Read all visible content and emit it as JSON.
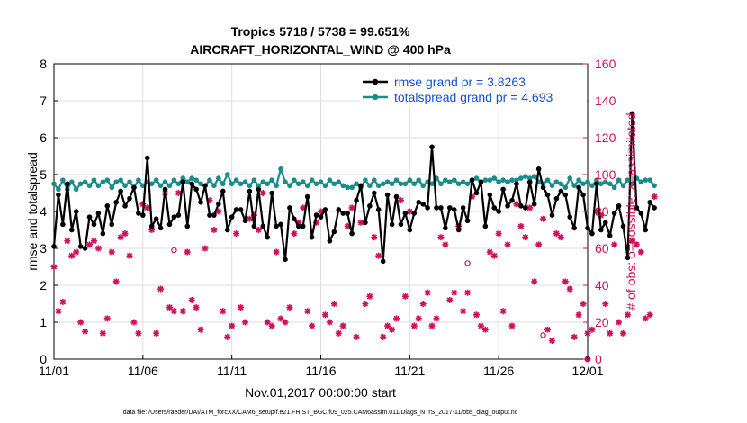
{
  "colors": {
    "rmse": "#000000",
    "spread": "#1a8c8c",
    "obs": "#d0105a",
    "legend_text": "#1550d8"
  },
  "chart_data": {
    "type": "line",
    "title": "Tropics 5718 / 5738 = 99.651%",
    "subtitle": "AIRCRAFT_HORIZONTAL_WIND @ 400 hPa",
    "xlabel": "Nov.01,2017 00:00:00 start",
    "ylabel": "rmse and totalspread",
    "ylabel_right": "# of obs: o=possible; ×=assimilated",
    "footnote": "data file: /Users/raeder/DAI/ATM_forcXX/CAM6_setup/f.e21.FHIST_BGC.f09_025.CAM6assim.011/Diags_NTrS_2017-11/obs_diag_output.nc",
    "xlim": [
      0,
      30
    ],
    "ylim": [
      0,
      8
    ],
    "ylim_right": [
      0,
      160
    ],
    "x_ticks": [
      0,
      5,
      10,
      15,
      20,
      25,
      30
    ],
    "x_tick_labels": [
      "11/01",
      "11/06",
      "11/11",
      "11/16",
      "11/21",
      "11/26",
      "12/01"
    ],
    "y_ticks": [
      "0",
      "1",
      "2",
      "3",
      "4",
      "5",
      "6",
      "7",
      "8"
    ],
    "y_ticks_right": [
      "0",
      "20",
      "40",
      "60",
      "80",
      "100",
      "120",
      "140",
      "160"
    ],
    "grid": true,
    "legend": "top-right",
    "series": [
      {
        "name": "rmse grand pr = 3.8263",
        "axis": "left",
        "x_start": 0,
        "x_step": 0.25,
        "values": [
          3.05,
          4.45,
          3.65,
          4.75,
          3.5,
          4.0,
          3.05,
          3.0,
          3.85,
          3.65,
          3.95,
          3.4,
          4.15,
          3.65,
          4.25,
          4.55,
          4.15,
          4.35,
          4.65,
          3.95,
          3.9,
          5.45,
          3.6,
          3.8,
          3.55,
          4.6,
          3.65,
          3.85,
          3.9,
          4.8,
          3.6,
          4.75,
          4.6,
          4.25,
          4.7,
          3.9,
          3.9,
          4.2,
          4.55,
          3.5,
          3.85,
          4.05,
          4.05,
          3.75,
          4.55,
          3.6,
          4.6,
          3.6,
          3.3,
          4.5,
          3.6,
          3.65,
          2.7,
          4.1,
          3.8,
          3.6,
          3.6,
          4.4,
          3.3,
          3.9,
          3.85,
          4.05,
          3.2,
          3.45,
          4.05,
          3.95,
          3.95,
          3.4,
          4.3,
          4.7,
          3.7,
          4.15,
          4.5,
          4.05,
          2.65,
          4.45,
          3.65,
          4.4,
          3.65,
          3.95,
          3.5,
          3.95,
          4.25,
          4.2,
          4.1,
          5.75,
          4.1,
          4.1,
          3.55,
          4.1,
          4.05,
          3.5,
          4.1,
          3.75,
          4.85,
          4.5,
          4.8,
          3.6,
          4.45,
          4.1,
          4.0,
          4.6,
          4.15,
          4.3,
          4.75,
          4.15,
          4.1,
          4.8,
          4.2,
          5.15,
          4.65,
          4.45,
          3.9,
          4.35,
          4.55,
          4.45,
          3.85,
          3.55,
          4.65,
          4.45,
          3.55,
          3.4,
          4.75,
          3.5,
          3.7,
          3.35,
          3.95,
          4.15,
          3.6,
          2.75,
          6.65,
          4.1,
          3.95,
          3.5,
          4.25,
          4.1
        ]
      },
      {
        "name": "totalspread grand pr = 4.693",
        "axis": "left",
        "x_start": 0,
        "x_step": 0.25,
        "values": [
          4.75,
          4.6,
          4.85,
          4.6,
          4.8,
          4.6,
          4.75,
          4.8,
          4.7,
          4.85,
          4.7,
          4.8,
          4.85,
          4.65,
          4.8,
          4.85,
          4.7,
          4.8,
          4.65,
          4.85,
          4.7,
          4.8,
          4.75,
          4.85,
          4.7,
          4.8,
          4.7,
          4.85,
          4.75,
          4.9,
          4.8,
          4.9,
          4.85,
          4.75,
          4.7,
          4.85,
          4.7,
          4.9,
          4.75,
          5.0,
          4.75,
          4.85,
          4.75,
          4.8,
          4.7,
          4.85,
          4.7,
          4.8,
          4.75,
          4.85,
          4.7,
          5.15,
          4.8,
          4.7,
          4.85,
          4.75,
          4.8,
          4.7,
          4.85,
          4.75,
          4.8,
          4.7,
          4.85,
          4.75,
          4.8,
          4.7,
          4.65,
          4.65,
          4.75,
          4.65,
          4.85,
          4.7,
          4.85,
          4.7,
          4.75,
          4.8,
          4.75,
          4.85,
          4.75,
          4.75,
          4.85,
          4.75,
          4.85,
          4.7,
          4.8,
          4.75,
          4.9,
          4.75,
          4.85,
          4.8,
          4.85,
          4.75,
          4.8,
          4.75,
          4.85,
          4.9,
          4.8,
          4.85,
          4.85,
          4.9,
          4.8,
          4.85,
          4.8,
          4.85,
          4.85,
          4.9,
          4.95,
          4.9,
          4.95,
          4.8,
          4.75,
          4.85,
          4.7,
          4.8,
          4.75,
          4.65,
          4.9,
          4.7,
          4.85,
          4.75,
          4.8,
          4.7,
          4.85,
          4.75,
          4.8,
          4.75,
          4.65,
          4.85,
          4.7,
          4.85,
          4.75,
          4.9,
          4.8,
          4.85,
          4.85,
          4.7
        ]
      },
      {
        "name": "obs possible/assimilated",
        "axis": "right",
        "x_start": 0,
        "x_step": 0.25,
        "values": [
          50,
          26,
          31,
          64,
          56,
          58,
          20,
          15,
          62,
          64,
          60,
          14,
          22,
          58,
          42,
          66,
          68,
          56,
          20,
          14,
          84,
          82,
          70,
          14,
          38,
          90,
          28,
          26,
          90,
          26,
          58,
          32,
          28,
          16,
          60,
          86,
          70,
          80,
          26,
          12,
          18,
          68,
          28,
          20,
          76,
          78,
          70,
          90,
          20,
          18,
          58,
          22,
          20,
          28,
          68,
          74,
          82,
          26,
          18,
          74,
          80,
          24,
          20,
          30,
          14,
          18,
          72,
          82,
          12,
          74,
          30,
          34,
          66,
          56,
          12,
          18,
          16,
          22,
          86,
          34,
          80,
          18,
          22,
          30,
          36,
          18,
          22,
          66,
          62,
          32,
          36,
          72,
          26,
          36,
          88,
          24,
          18,
          16,
          58,
          56,
          68,
          26,
          62,
          18,
          84,
          72,
          66,
          82,
          42,
          62,
          76,
          16,
          10,
          68,
          66,
          42,
          38,
          12,
          24,
          30,
          14,
          16,
          80,
          78,
          30,
          14,
          62,
          20,
          14,
          24,
          64,
          62,
          58,
          22,
          24,
          88
        ]
      }
    ],
    "obs_possible_markers": [
      {
        "x": 6.75,
        "y": 59
      },
      {
        "x": 23.25,
        "y": 52
      },
      {
        "x": 27.5,
        "y": 13
      }
    ]
  }
}
